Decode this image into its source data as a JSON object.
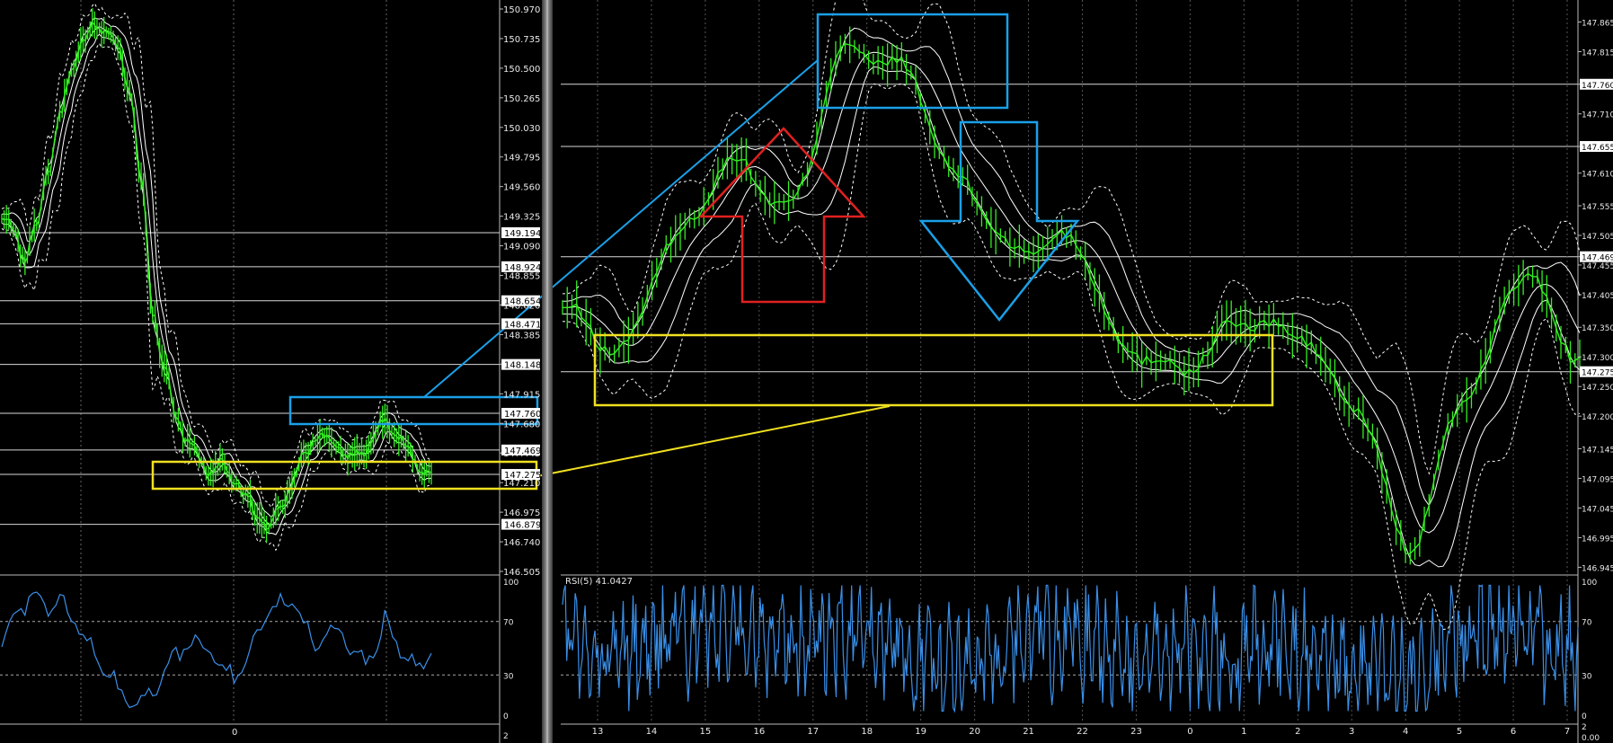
{
  "left_panel": {
    "price_ticks": [
      "150.970",
      "150.735",
      "150.500",
      "150.265",
      "150.030",
      "149.795",
      "149.560",
      "149.325",
      "149.090",
      "148.855",
      "148.620",
      "148.385",
      "148.150",
      "147.915",
      "147.680",
      "147.445",
      "147.210",
      "146.975",
      "146.740",
      "146.505"
    ],
    "level_tags": [
      "149.194",
      "148.924",
      "148.654",
      "148.471",
      "148.148",
      "147.760",
      "147.469",
      "147.275",
      "146.879"
    ],
    "x_tick": "0",
    "rsi_ticks": [
      "100",
      "70",
      "30",
      "0"
    ],
    "bottom_tick": "2"
  },
  "right_panel": {
    "price_ticks": [
      "147.865",
      "147.815",
      "147.760",
      "147.710",
      "147.655",
      "147.610",
      "147.555",
      "147.505",
      "147.469",
      "147.455",
      "147.405",
      "147.350",
      "147.300",
      "147.275",
      "147.250",
      "147.200",
      "147.145",
      "147.095",
      "147.045",
      "146.995",
      "146.945"
    ],
    "level_tags": [
      "147.760",
      "147.655",
      "147.469",
      "147.275"
    ],
    "x_labels": [
      "13",
      "14",
      "15",
      "16",
      "17",
      "18",
      "19",
      "20",
      "21",
      "22",
      "23",
      "0",
      "1",
      "2",
      "3",
      "4",
      "5",
      "6",
      "7"
    ],
    "rsi_label": "RSI(5) 41.0427",
    "rsi_ticks": [
      "100",
      "70",
      "30",
      "0"
    ],
    "bottom_ticks": [
      "2",
      "0.00"
    ]
  },
  "colors": {
    "background": "#000000",
    "price": "#33ee22",
    "bands": "#ffffff",
    "rsi": "#3a8fe8",
    "highlight_blue": "#1aa0e8",
    "highlight_yellow": "#f0e020",
    "arrow_up": "#e02020",
    "level_line": "#d8d8d8"
  },
  "chart_data": [
    {
      "type": "line",
      "series": [
        {
          "values": [
            149.3,
            149.2,
            149.0,
            149.25,
            149.7,
            150.1,
            150.5,
            150.7,
            150.85,
            150.8,
            150.65,
            150.35,
            149.6,
            148.6,
            148.1,
            147.75,
            147.55,
            147.4,
            147.3,
            147.35,
            147.25,
            147.1,
            146.95,
            146.85,
            147.0,
            147.2,
            147.4,
            147.6,
            147.55,
            147.5,
            147.4,
            147.45,
            147.55,
            147.7,
            147.6,
            147.45,
            147.35,
            147.25
          ]
        }
      ],
      "ylim": [
        146.505,
        150.97
      ],
      "grid": true
    },
    {
      "type": "line",
      "series": [
        {
          "values": [
            48,
            75,
            82,
            88,
            80,
            86,
            72,
            60,
            45,
            35,
            20,
            10,
            12,
            15,
            30,
            45,
            50,
            55,
            48,
            35,
            30,
            40,
            60,
            75,
            85,
            90,
            70,
            55,
            60,
            65,
            50,
            40,
            45,
            70,
            55,
            40,
            35,
            50
          ]
        }
      ],
      "ylim": [
        0,
        100
      ]
    },
    {
      "type": "line",
      "x": [
        "13",
        "14",
        "15",
        "16",
        "17",
        "18",
        "19",
        "20",
        "21",
        "22",
        "23",
        "0",
        "1",
        "2",
        "3",
        "4",
        "5",
        "6",
        "7"
      ],
      "series": [
        {
          "values": [
            147.38,
            147.31,
            147.5,
            147.63,
            147.55,
            147.82,
            147.79,
            147.6,
            147.48,
            147.5,
            147.31,
            147.28,
            147.36,
            147.34,
            147.22,
            146.98,
            147.24,
            147.44,
            147.3
          ]
        }
      ],
      "ylim": [
        146.945,
        147.865
      ],
      "grid": true
    },
    {
      "type": "line",
      "x": [
        "13",
        "14",
        "15",
        "16",
        "17",
        "18",
        "19",
        "20",
        "21",
        "22",
        "23",
        "0",
        "1",
        "2",
        "3",
        "4",
        "5",
        "6",
        "7"
      ],
      "series": [
        {
          "values": [
            55,
            40,
            60,
            70,
            45,
            65,
            50,
            30,
            55,
            60,
            40,
            50,
            45,
            55,
            35,
            25,
            60,
            70,
            41
          ]
        }
      ],
      "ylim": [
        0,
        100
      ]
    }
  ]
}
